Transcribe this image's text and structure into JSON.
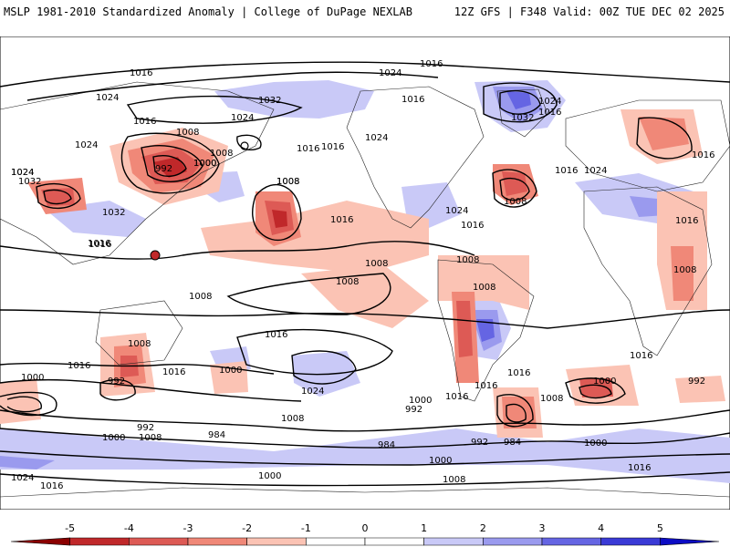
{
  "header": {
    "left": "MSLP 1981-2010 Standardized Anomaly | College of DuPage NEXLAB",
    "right": "12Z GFS | F348 Valid: 00Z TUE DEC 02 2025"
  },
  "colorbar": {
    "ticks": [
      "-5",
      "-4",
      "-3",
      "-2",
      "-1",
      "0",
      "1",
      "2",
      "3",
      "4",
      "5"
    ],
    "colors": [
      "#8b0000",
      "#c0282a",
      "#dd5a55",
      "#f08878",
      "#fbc3b4",
      "#ffffff",
      "#ffffff",
      "#c9c9f7",
      "#9a9aee",
      "#6565e3",
      "#3a3ad6",
      "#0c0cc4"
    ]
  },
  "map_labels": [
    "1016",
    "1024",
    "1016",
    "1024",
    "1032",
    "1024",
    "1016",
    "1008",
    "1000",
    "1024",
    "1016",
    "1024",
    "1008",
    "1008",
    "1024",
    "1024",
    "1016",
    "1016",
    "1032",
    "992",
    "1000",
    "1024",
    "1016",
    "1024",
    "1016",
    "1032",
    "1016",
    "1032",
    "1024",
    "1016",
    "1008",
    "1016",
    "1016",
    "1008",
    "1008",
    "1016",
    "1008",
    "1008",
    "1008",
    "1008",
    "1008",
    "1008",
    "1016",
    "1016",
    "1008",
    "1016",
    "1016",
    "1016",
    "1000",
    "992",
    "1016",
    "1000",
    "1024",
    "1016",
    "1000",
    "992",
    "1016",
    "1000",
    "1008",
    "992",
    "992",
    "984",
    "1000",
    "1008",
    "984",
    "992",
    "984",
    "1000",
    "1000",
    "1024",
    "1016",
    "1000",
    "1008",
    "1016"
  ],
  "anomalies": [
    {
      "sign": "neg",
      "level": 1
    },
    {
      "sign": "neg",
      "level": 2
    },
    {
      "sign": "neg",
      "level": 3
    },
    {
      "sign": "pos",
      "level": 2
    },
    {
      "sign": "pos",
      "level": 3
    },
    {
      "sign": "pos",
      "level": 4
    },
    {
      "sign": "pos",
      "level": 1
    }
  ]
}
